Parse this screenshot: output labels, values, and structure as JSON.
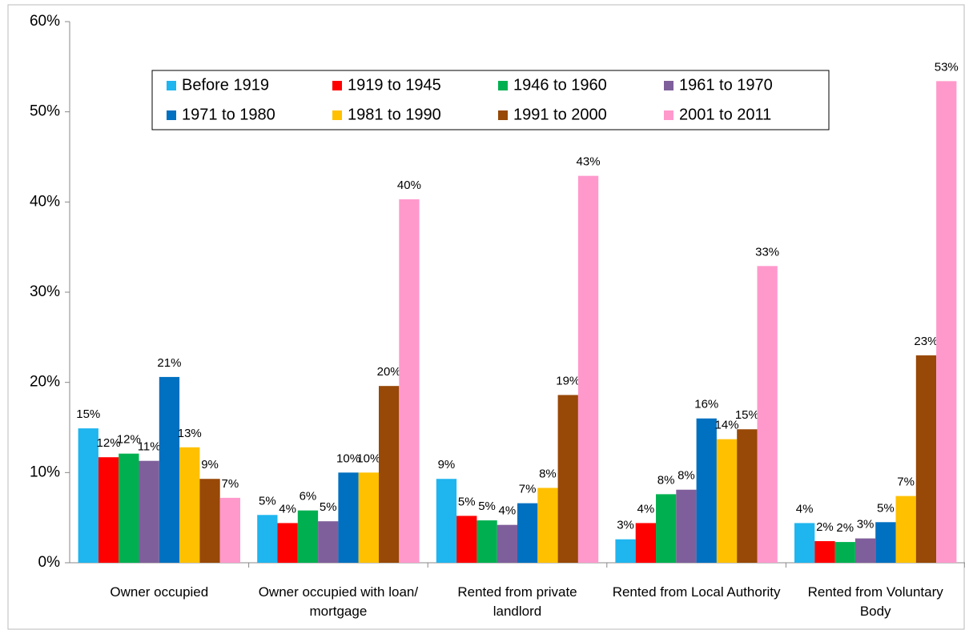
{
  "chart_data": {
    "type": "bar",
    "categories": [
      "Owner occupied",
      "Owner occupied with loan/ mortgage",
      "Rented from private landlord",
      "Rented from Local Authority",
      "Rented from Voluntary Body"
    ],
    "series": [
      {
        "name": "Before 1919",
        "color": "#1fb5ef",
        "values": [
          14.9,
          5.3,
          9.3,
          2.6,
          4.4
        ],
        "value_labels": [
          "15%",
          "5%",
          "9%",
          "3%",
          "4%"
        ]
      },
      {
        "name": "1919 to 1945",
        "color": "#ff0000",
        "values": [
          11.7,
          4.4,
          5.2,
          4.4,
          2.4
        ],
        "value_labels": [
          "12%",
          "4%",
          "5%",
          "4%",
          "2%"
        ]
      },
      {
        "name": "1946 to 1960",
        "color": "#00b050",
        "values": [
          12.1,
          5.8,
          4.7,
          7.6,
          2.3
        ],
        "value_labels": [
          "12%",
          "6%",
          "5%",
          "8%",
          "2%"
        ]
      },
      {
        "name": "1961 to 1970",
        "color": "#7f5f9b",
        "values": [
          11.3,
          4.6,
          4.2,
          8.1,
          2.7
        ],
        "value_labels": [
          "11%",
          "5%",
          "4%",
          "8%",
          "3%"
        ]
      },
      {
        "name": "1971 to 1980",
        "color": "#0070c0",
        "values": [
          20.6,
          10.0,
          6.6,
          16.0,
          4.5
        ],
        "value_labels": [
          "21%",
          "10%",
          "7%",
          "16%",
          "5%"
        ]
      },
      {
        "name": "1981 to 1990",
        "color": "#ffc000",
        "values": [
          12.8,
          10.0,
          8.3,
          13.7,
          7.4
        ],
        "value_labels": [
          "13%",
          "10%",
          "8%",
          "14%",
          "7%"
        ]
      },
      {
        "name": "1991 to 2000",
        "color": "#984807",
        "values": [
          9.3,
          19.6,
          18.6,
          14.8,
          23.0
        ],
        "value_labels": [
          "9%",
          "20%",
          "19%",
          "15%",
          "23%"
        ]
      },
      {
        "name": "2001 to 2011",
        "color": "#ff99cc",
        "values": [
          7.2,
          40.3,
          42.9,
          32.9,
          53.4
        ],
        "value_labels": [
          "7%",
          "40%",
          "43%",
          "33%",
          "53%"
        ]
      }
    ],
    "ylim": [
      0,
      60
    ],
    "yticks": [
      {
        "value": 0,
        "label": "0%"
      },
      {
        "value": 10,
        "label": "10%"
      },
      {
        "value": 20,
        "label": "20%"
      },
      {
        "value": 30,
        "label": "30%"
      },
      {
        "value": 40,
        "label": "40%"
      },
      {
        "value": 50,
        "label": "50%"
      },
      {
        "value": 60,
        "label": "60%"
      }
    ],
    "grid": false,
    "legend": "top"
  }
}
